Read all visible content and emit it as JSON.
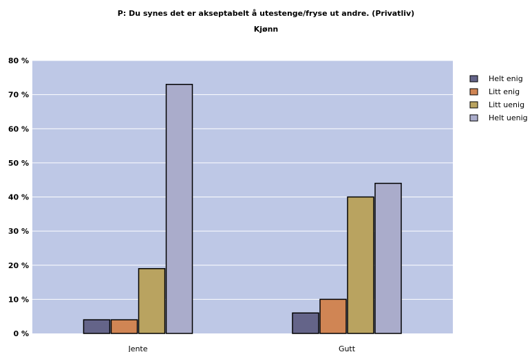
{
  "chart_data": {
    "type": "bar",
    "title": "P: Du synes det er akseptabelt å utestenge/fryse ut andre. (Privatliv)",
    "subtitle": "Kjønn",
    "xlabel": "",
    "ylabel": "",
    "categories": [
      "Jente",
      "Gutt"
    ],
    "series": [
      {
        "name": "Helt enig",
        "values": [
          4,
          6
        ],
        "color": "#646489"
      },
      {
        "name": "Litt enig",
        "values": [
          4,
          10
        ],
        "color": "#d08554"
      },
      {
        "name": "Litt uenig",
        "values": [
          19,
          40
        ],
        "color": "#b9a360"
      },
      {
        "name": "Helt uenig",
        "values": [
          73,
          44
        ],
        "color": "#aaaccb"
      }
    ],
    "ylim": [
      0,
      80
    ],
    "yticks": [
      0,
      10,
      20,
      30,
      40,
      50,
      60,
      70,
      80
    ],
    "ytick_labels": [
      "0 %",
      "10 %",
      "20 %",
      "30 %",
      "40 %",
      "50 %",
      "60 %",
      "70 %",
      "80 %"
    ],
    "grid": true,
    "legend_position": "right",
    "plot_background": "#bec8e6"
  }
}
